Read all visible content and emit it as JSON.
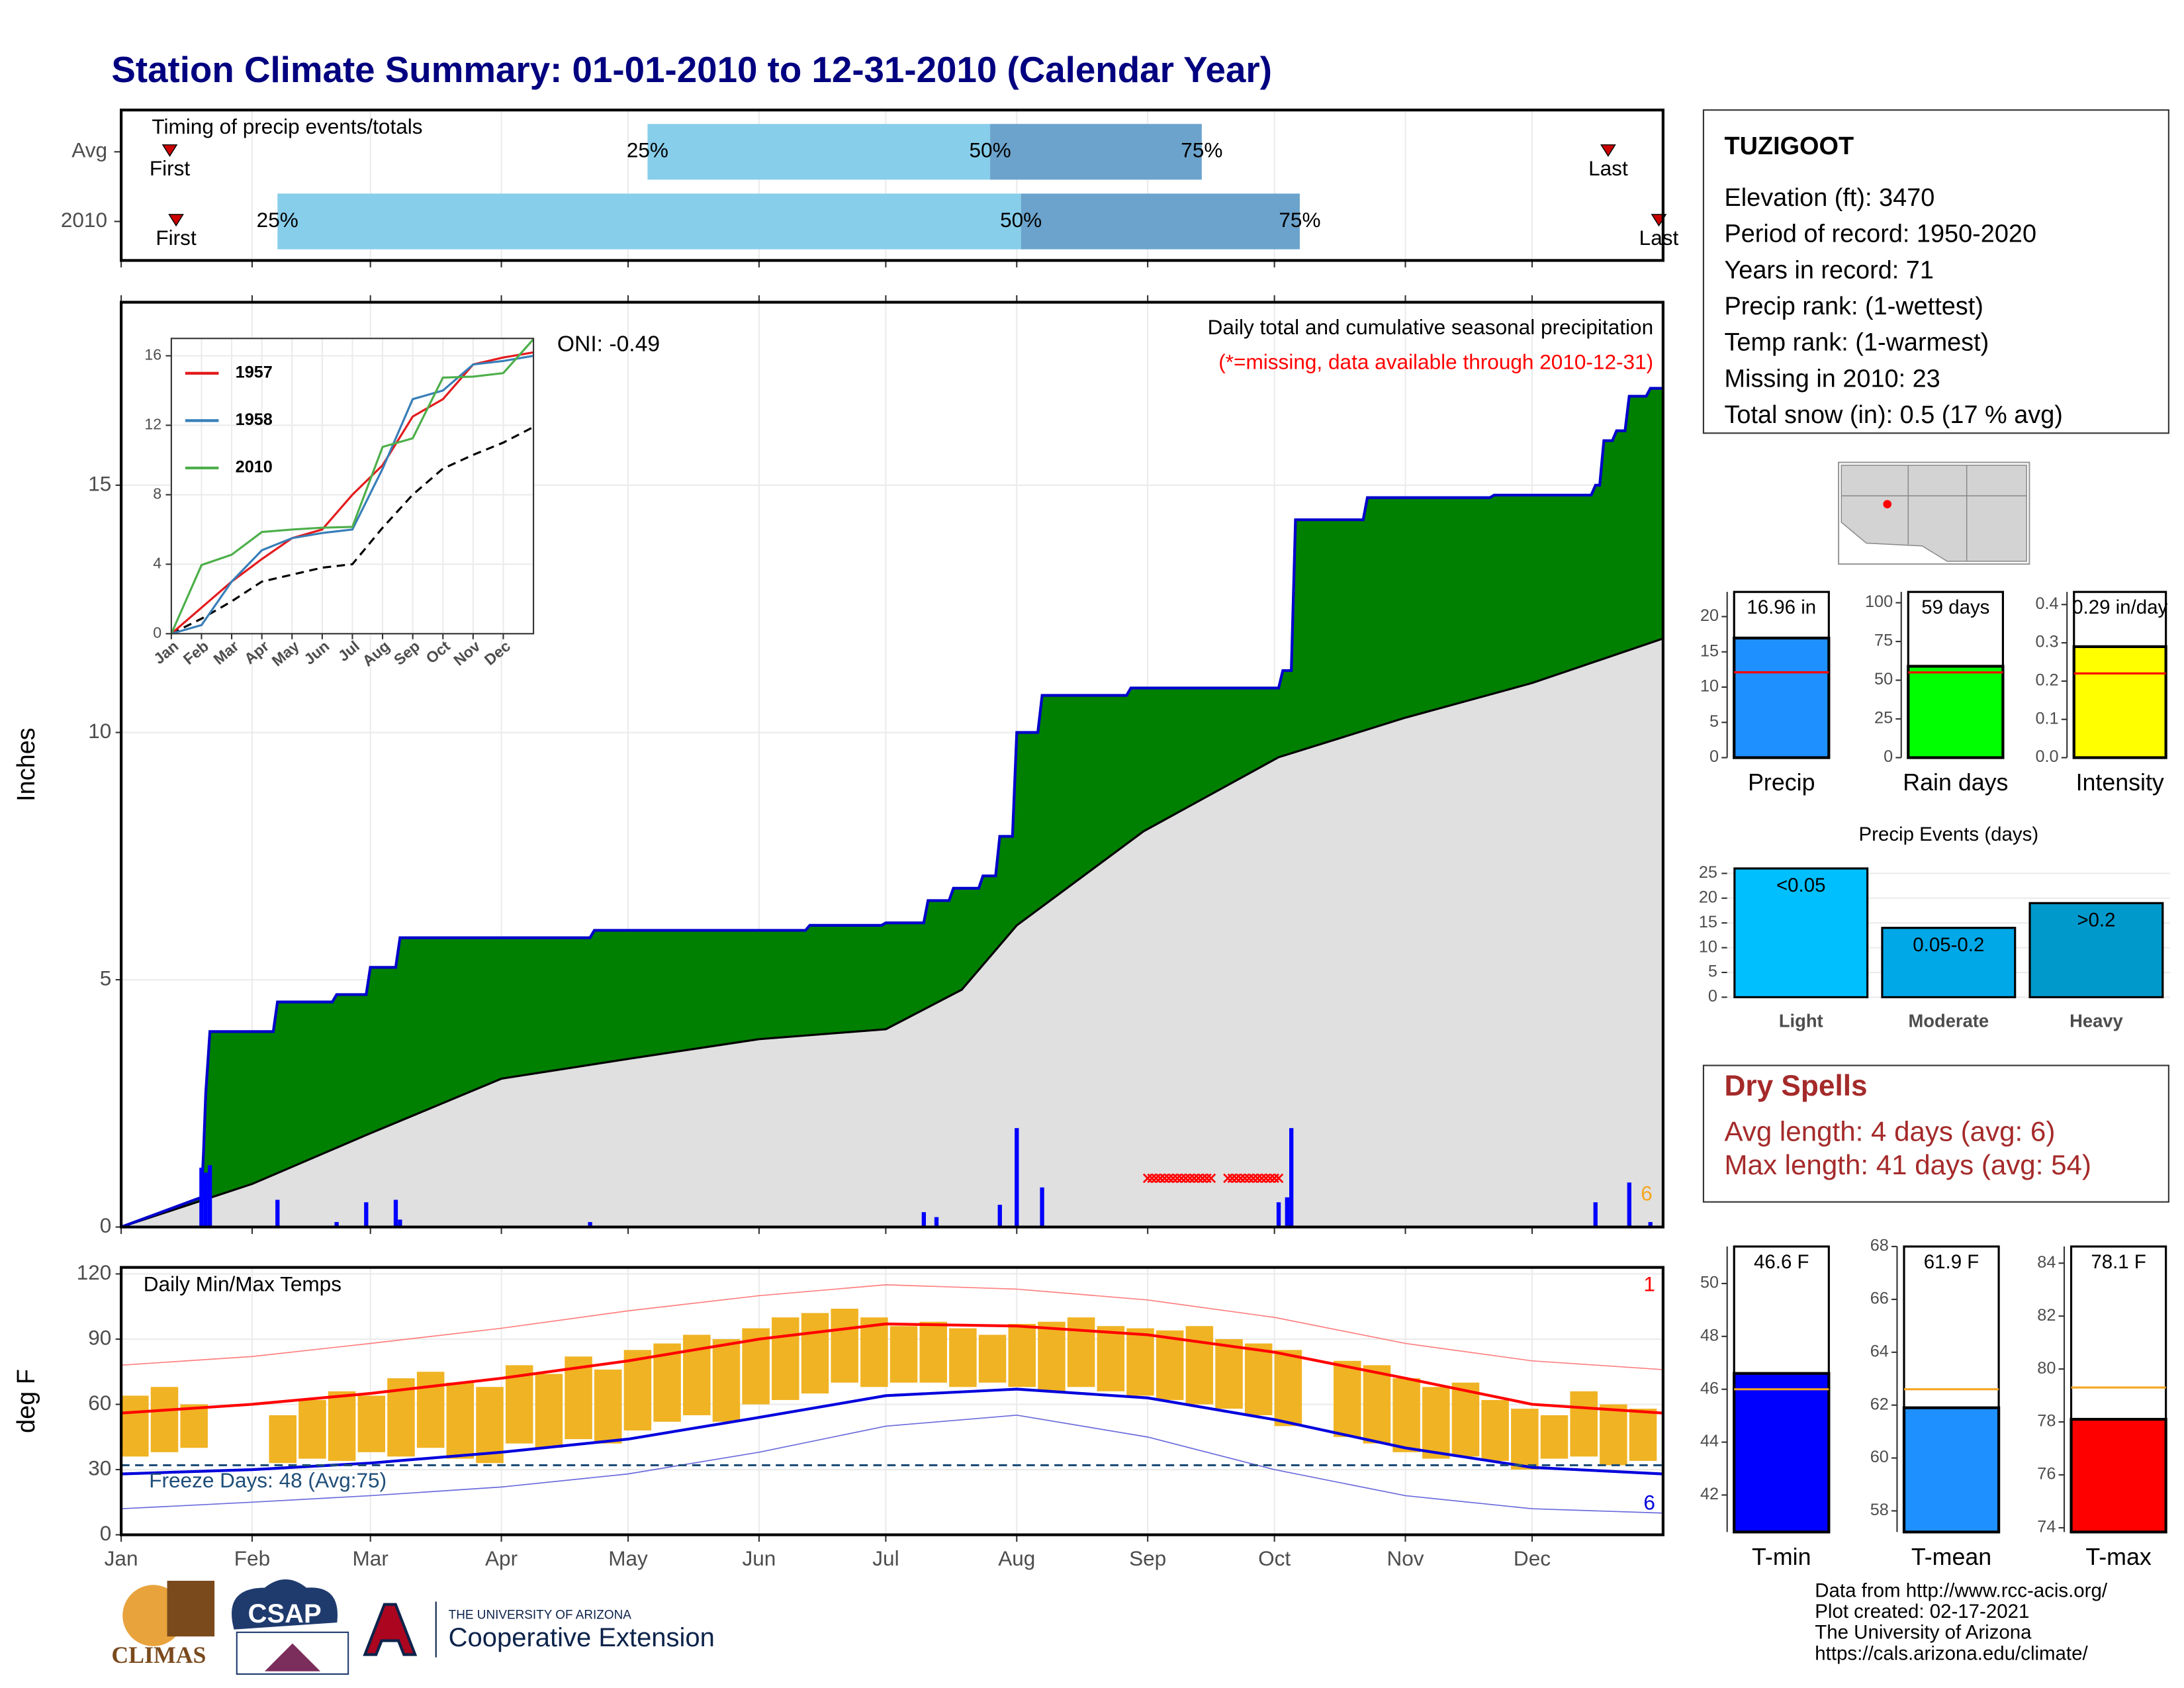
{
  "title": "Station Climate Summary: 01-01-2010 to 12-31-2010 (Calendar Year)",
  "station": {
    "name": "TUZIGOOT",
    "lines": [
      "Elevation (ft): 3470",
      "Period of record: 1950-2020",
      "Years in record: 71",
      "Precip rank:  (1-wettest)",
      "Temp rank:  (1-warmest)",
      "Missing in 2010: 23",
      "Total snow (in): 0.5 (17 % avg)"
    ]
  },
  "dry_spells": {
    "title": "Dry Spells",
    "lines": [
      "Avg length: 4 days (avg: 6)",
      "Max length: 41 days (avg: 54)"
    ]
  },
  "credits": [
    "Data from http://www.rcc-acis.org/",
    "Plot created: 02-17-2021",
    "The University of Arizona",
    "https://cals.arizona.edu/climate/"
  ],
  "logos": {
    "climas": "CLIMAS",
    "csap": "CSAP",
    "ua": "THE UNIVERSITY OF ARIZONA",
    "coop": "Cooperative Extension"
  },
  "chart_data": [
    {
      "type": "timing",
      "title": "Timing of precip events/totals",
      "xlim": [
        0,
        365
      ],
      "xticks": [
        0,
        31,
        59,
        90,
        120,
        151,
        181,
        212,
        243,
        273,
        304,
        334
      ],
      "marker_labels": {
        "first": "First",
        "last": "Last"
      },
      "quartile_labels": [
        "25%",
        "50%",
        "75%"
      ],
      "light_color": "#87ceeb",
      "dark_color": "#6ba3cc",
      "rows": [
        {
          "name": "Avg",
          "first": 11.5,
          "q25": 124.6,
          "q50": 205.7,
          "q75": 255.8,
          "last": 352
        },
        {
          "name": "2010",
          "first": 13,
          "q25": 37,
          "q50": 213,
          "q75": 279,
          "last": 364
        }
      ]
    },
    {
      "type": "area",
      "title": "Daily total and cumulative seasonal precipitation",
      "subtitle": "(*=missing, data available through 2010-12-31)",
      "annotation": "ONI: -0.49",
      "corner_note": "6",
      "ylabel": "Inches",
      "xlim": [
        0,
        365
      ],
      "xticks": [
        0,
        31,
        59,
        90,
        120,
        151,
        181,
        212,
        243,
        273,
        304,
        334
      ],
      "ylim": [
        0,
        18.7
      ],
      "yticks": [
        0,
        5,
        10,
        15
      ],
      "grid": true,
      "series": [
        {
          "color": "#0000cc",
          "fill": "#008000",
          "x": [
            0,
            19,
            19.5,
            20,
            21,
            36,
            37,
            50,
            51,
            58,
            59,
            65,
            66,
            111,
            112,
            162,
            163,
            180,
            181,
            190,
            191,
            196,
            197,
            203,
            204,
            207,
            208,
            211,
            212,
            217,
            218,
            238,
            239,
            274,
            275,
            277,
            278,
            294,
            295,
            324,
            325,
            348,
            349,
            350,
            351,
            353,
            354,
            356,
            357,
            361,
            362,
            365
          ],
          "values": [
            0,
            0.6,
            1.5,
            2.7,
            3.95,
            3.95,
            4.55,
            4.55,
            4.7,
            4.7,
            5.25,
            5.25,
            5.85,
            5.85,
            6.0,
            6.0,
            6.1,
            6.1,
            6.15,
            6.15,
            6.6,
            6.6,
            6.85,
            6.85,
            7.1,
            7.1,
            7.9,
            7.9,
            10.0,
            10.0,
            10.75,
            10.75,
            10.9,
            10.9,
            11.25,
            11.25,
            14.3,
            14.3,
            14.75,
            14.75,
            14.8,
            14.8,
            15.0,
            15.0,
            15.9,
            15.9,
            16.1,
            16.1,
            16.8,
            16.8,
            16.96,
            16.96
          ]
        },
        {
          "color": "#000000",
          "fill": "#e0e0e0",
          "x": [
            0,
            31,
            58,
            90,
            120,
            151,
            181,
            199,
            212,
            242,
            274,
            304,
            334,
            365
          ],
          "values": [
            0,
            0.87,
            1.86,
            3.0,
            3.4,
            3.8,
            4.0,
            4.8,
            6.1,
            8.0,
            9.5,
            10.3,
            11.0,
            11.9
          ]
        }
      ],
      "bars": {
        "color": "#0000ff",
        "x": [
          19,
          20,
          21,
          37,
          51,
          58,
          65,
          66,
          111,
          190,
          193,
          208,
          212,
          218,
          274,
          276,
          277,
          349,
          357,
          362
        ],
        "values": [
          1.2,
          1.1,
          1.25,
          0.55,
          0.1,
          0.5,
          0.55,
          0.15,
          0.1,
          0.3,
          0.2,
          0.45,
          2.0,
          0.8,
          0.5,
          0.6,
          2.0,
          0.5,
          0.9,
          0.1
        ]
      },
      "missing_ranges": [
        [
          243,
          258
        ],
        [
          262,
          274
        ]
      ],
      "missing_color": "#ff0000"
    },
    {
      "type": "line",
      "xlim": [
        0,
        12
      ],
      "xticks": [
        {
          "value": 0,
          "label": "Jan"
        },
        {
          "value": 1,
          "label": "Feb"
        },
        {
          "value": 2,
          "label": "Mar"
        },
        {
          "value": 3,
          "label": "Apr"
        },
        {
          "value": 4,
          "label": "May"
        },
        {
          "value": 5,
          "label": "Jun"
        },
        {
          "value": 6,
          "label": "Jul"
        },
        {
          "value": 7,
          "label": "Aug"
        },
        {
          "value": 8,
          "label": "Sep"
        },
        {
          "value": 9,
          "label": "Oct"
        },
        {
          "value": 10,
          "label": "Nov"
        },
        {
          "value": 11,
          "label": "Dec"
        }
      ],
      "ylim": [
        0,
        17
      ],
      "yticks": [
        0,
        4,
        8,
        12,
        16
      ],
      "grid": true,
      "x": [
        0,
        1,
        2,
        3,
        4,
        5,
        6,
        7,
        8,
        9,
        10,
        11,
        12
      ],
      "series": [
        {
          "name": "1957",
          "color": "#e41a1c",
          "values": [
            0,
            1.5,
            3,
            4.3,
            5.5,
            6,
            8,
            9.7,
            12.5,
            13.5,
            15.5,
            15.9,
            16.2
          ]
        },
        {
          "name": "1958",
          "color": "#377eb8",
          "values": [
            0,
            0.5,
            3,
            4.8,
            5.5,
            5.8,
            6,
            9.5,
            13.5,
            14,
            15.5,
            15.7,
            16
          ]
        },
        {
          "name": "2010",
          "color": "#4daf4a",
          "values": [
            0,
            3.95,
            4.55,
            5.85,
            6.0,
            6.1,
            6.15,
            10.75,
            11.25,
            14.75,
            14.8,
            15.0,
            16.96
          ]
        }
      ],
      "average": {
        "color": "#000000",
        "values": [
          0,
          0.87,
          1.86,
          3.0,
          3.4,
          3.8,
          4.0,
          6.1,
          8.0,
          9.5,
          10.3,
          11.0,
          11.9
        ]
      }
    },
    {
      "type": "range",
      "title": "Daily Min/Max Temps",
      "ylabel": "deg F",
      "annotation": "Freeze Days: 48 (Avg:75)",
      "high_note": "1",
      "low_note": "6",
      "xlim": [
        0,
        365
      ],
      "xticks": [
        {
          "value": 0,
          "label": "Jan"
        },
        {
          "value": 31,
          "label": "Feb"
        },
        {
          "value": 59,
          "label": "Mar"
        },
        {
          "value": 90,
          "label": "Apr"
        },
        {
          "value": 120,
          "label": "May"
        },
        {
          "value": 151,
          "label": "Jun"
        },
        {
          "value": 181,
          "label": "Jul"
        },
        {
          "value": 212,
          "label": "Aug"
        },
        {
          "value": 243,
          "label": "Sep"
        },
        {
          "value": 273,
          "label": "Oct"
        },
        {
          "value": 304,
          "label": "Nov"
        },
        {
          "value": 334,
          "label": "Dec"
        }
      ],
      "ylim": [
        0,
        123
      ],
      "yticks": [
        0,
        30,
        60,
        90,
        120
      ],
      "grid": true,
      "freeze_line": 32,
      "freeze_color": "#1f4e79",
      "x": [
        0,
        31,
        59,
        90,
        120,
        151,
        181,
        212,
        243,
        273,
        304,
        334,
        365
      ],
      "series": [
        {
          "color": "#ff0000",
          "width": 2,
          "values": [
            56,
            60,
            65,
            72,
            80,
            90,
            97,
            96,
            92,
            84,
            72,
            60,
            56
          ]
        },
        {
          "color": "#0000dd",
          "width": 2,
          "values": [
            28,
            30,
            33,
            38,
            44,
            54,
            64,
            67,
            63,
            53,
            40,
            31,
            28
          ]
        },
        {
          "color": "#ff8080",
          "width": 0.8,
          "values": [
            78,
            82,
            88,
            95,
            103,
            110,
            115,
            113,
            108,
            100,
            88,
            80,
            76
          ]
        },
        {
          "color": "#6b6bdd",
          "width": 0.8,
          "values": [
            12,
            15,
            18,
            22,
            28,
            38,
            50,
            55,
            45,
            30,
            18,
            12,
            10
          ]
        }
      ],
      "bars": {
        "color": "#f0b323",
        "width": 6.5,
        "x": [
          0,
          7,
          14,
          21,
          28,
          35,
          42,
          49,
          56,
          63,
          70,
          77,
          84,
          91,
          98,
          105,
          112,
          119,
          126,
          133,
          140,
          147,
          154,
          161,
          168,
          175,
          182,
          189,
          196,
          203,
          210,
          217,
          224,
          231,
          238,
          245,
          252,
          259,
          266,
          273,
          280,
          287,
          294,
          301,
          308,
          315,
          322,
          329,
          336,
          343,
          350,
          357
        ],
        "max": [
          64,
          68,
          60,
          null,
          null,
          55,
          62,
          66,
          64,
          72,
          75,
          70,
          68,
          78,
          74,
          82,
          76,
          85,
          88,
          92,
          90,
          95,
          100,
          102,
          104,
          100,
          96,
          98,
          95,
          92,
          97,
          98,
          100,
          96,
          95,
          94,
          96,
          90,
          88,
          85,
          null,
          80,
          78,
          72,
          68,
          70,
          62,
          58,
          55,
          66,
          60,
          58
        ],
        "min": [
          36,
          38,
          40,
          null,
          null,
          33,
          35,
          34,
          38,
          36,
          40,
          35,
          33,
          42,
          40,
          44,
          42,
          48,
          52,
          55,
          52,
          60,
          62,
          65,
          70,
          68,
          70,
          70,
          68,
          70,
          68,
          66,
          68,
          66,
          64,
          62,
          60,
          58,
          55,
          50,
          null,
          45,
          42,
          38,
          35,
          36,
          34,
          30,
          35,
          36,
          32,
          34
        ]
      }
    },
    {
      "type": "gauge",
      "category": "Precip",
      "value": 16.96,
      "value_label": "16.96 in",
      "average": 12.1,
      "color": "#1e90ff",
      "avg_color": "#ff0000",
      "ylim": [
        0,
        23.5
      ],
      "yticks": [
        0,
        5,
        10,
        15,
        20
      ]
    },
    {
      "type": "gauge",
      "category": "Rain days",
      "value": 59,
      "value_label": "59 days",
      "average": 55,
      "color": "#00ff00",
      "avg_color": "#ff0000",
      "ylim": [
        0,
        107
      ],
      "yticks": [
        0,
        25,
        50,
        75,
        100
      ]
    },
    {
      "type": "gauge",
      "category": "Intensity",
      "value": 0.29,
      "value_label": "0.29 in/day",
      "average": 0.22,
      "color": "#ffff00",
      "avg_color": "#ff0000",
      "ylim": [
        0,
        0.433
      ],
      "yticks": [
        {
          "value": 0,
          "label": "0.0"
        },
        0.1,
        0.2,
        0.3,
        0.4
      ]
    },
    {
      "type": "bar",
      "title": "Precip Events (days)",
      "categories": [
        "Light",
        "Moderate",
        "Heavy"
      ],
      "values": [
        26,
        14,
        19
      ],
      "bin_labels": [
        "<0.05",
        "0.05-0.2",
        ">0.2"
      ],
      "colors": [
        "#00bfff",
        "#00a8e8",
        "#0099cc"
      ],
      "ylim": [
        0,
        27
      ],
      "yticks": [
        0,
        5,
        10,
        15,
        20,
        25
      ],
      "grid": true
    },
    {
      "type": "gauge",
      "category": "T-min",
      "value": 46.6,
      "value_label": "46.6 F",
      "average": 46.0,
      "color": "#0000ff",
      "avg_color": "#f5a623",
      "ylim": [
        40.6,
        51.4
      ],
      "yticks": [
        42,
        44,
        46,
        48,
        50
      ]
    },
    {
      "type": "gauge",
      "category": "T-mean",
      "value": 61.9,
      "value_label": "61.9 F",
      "average": 62.6,
      "color": "#1e90ff",
      "avg_color": "#f5a623",
      "ylim": [
        57.2,
        68
      ],
      "yticks": [
        58,
        60,
        62,
        64,
        66,
        68
      ]
    },
    {
      "type": "gauge",
      "category": "T-max",
      "value": 78.1,
      "value_label": "78.1 F",
      "average": 79.3,
      "color": "#ff0000",
      "avg_color": "#f5a623",
      "ylim": [
        73.84,
        84.63
      ],
      "yticks": [
        74,
        76,
        78,
        80,
        82,
        84
      ]
    }
  ]
}
